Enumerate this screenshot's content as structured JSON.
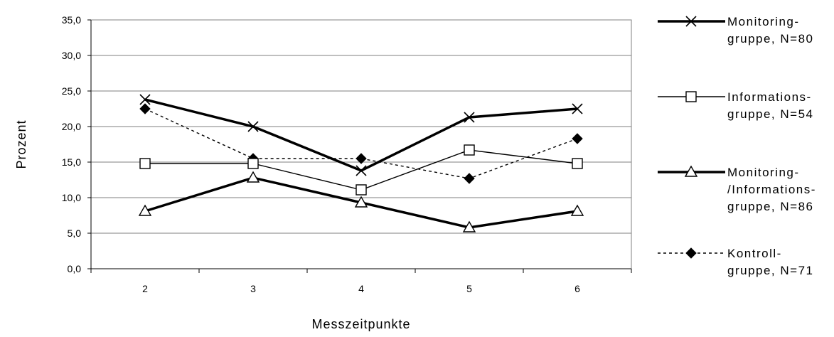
{
  "chart_data": {
    "type": "line",
    "xlabel": "Messzeitpunkte",
    "ylabel": "Prozent",
    "categories": [
      "2",
      "3",
      "4",
      "5",
      "6"
    ],
    "ylim": [
      0,
      35
    ],
    "yticks": [
      "0,0",
      "5,0",
      "10,0",
      "15,0",
      "20,0",
      "25,0",
      "30,0",
      "35,0"
    ],
    "grid": true,
    "legend_position": "right",
    "series": [
      {
        "key": "monitoring",
        "legend_lines": [
          "Monitoring-",
          "gruppe, N=80"
        ],
        "values": [
          23.8,
          20.0,
          13.8,
          21.3,
          22.5
        ],
        "marker": "x",
        "line_style": "solid-thick",
        "color": "#000000"
      },
      {
        "key": "information",
        "legend_lines": [
          "Informations-",
          "gruppe, N=54"
        ],
        "values": [
          14.8,
          14.8,
          11.1,
          16.7,
          14.8
        ],
        "marker": "square",
        "line_style": "solid-thin",
        "color": "#000000"
      },
      {
        "key": "monitoring_information",
        "legend_lines": [
          "Monitoring-",
          "/Informations-",
          "gruppe, N=86"
        ],
        "values": [
          8.1,
          12.8,
          9.3,
          5.8,
          8.1
        ],
        "marker": "triangle",
        "line_style": "solid-thick",
        "color": "#000000"
      },
      {
        "key": "control",
        "legend_lines": [
          "Kontroll-",
          "gruppe, N=71"
        ],
        "values": [
          22.5,
          15.5,
          15.5,
          12.7,
          18.3
        ],
        "marker": "diamond",
        "line_style": "dashed",
        "color": "#000000"
      }
    ]
  }
}
